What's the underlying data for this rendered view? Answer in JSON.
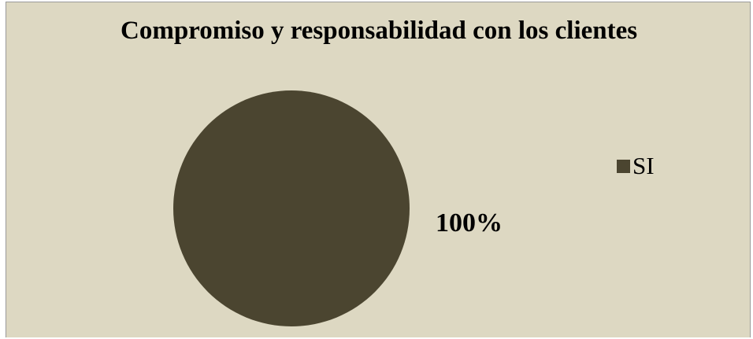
{
  "chart_data": {
    "type": "pie",
    "title": "Compromiso y responsabilidad con los clientes",
    "categories": [
      "SI"
    ],
    "values": [
      100
    ],
    "data_labels": [
      "100%"
    ],
    "legend": {
      "placement": "right",
      "entries": [
        "SI"
      ]
    },
    "colors": {
      "SI": "#4b4530",
      "background": "#ddd8c2"
    }
  }
}
